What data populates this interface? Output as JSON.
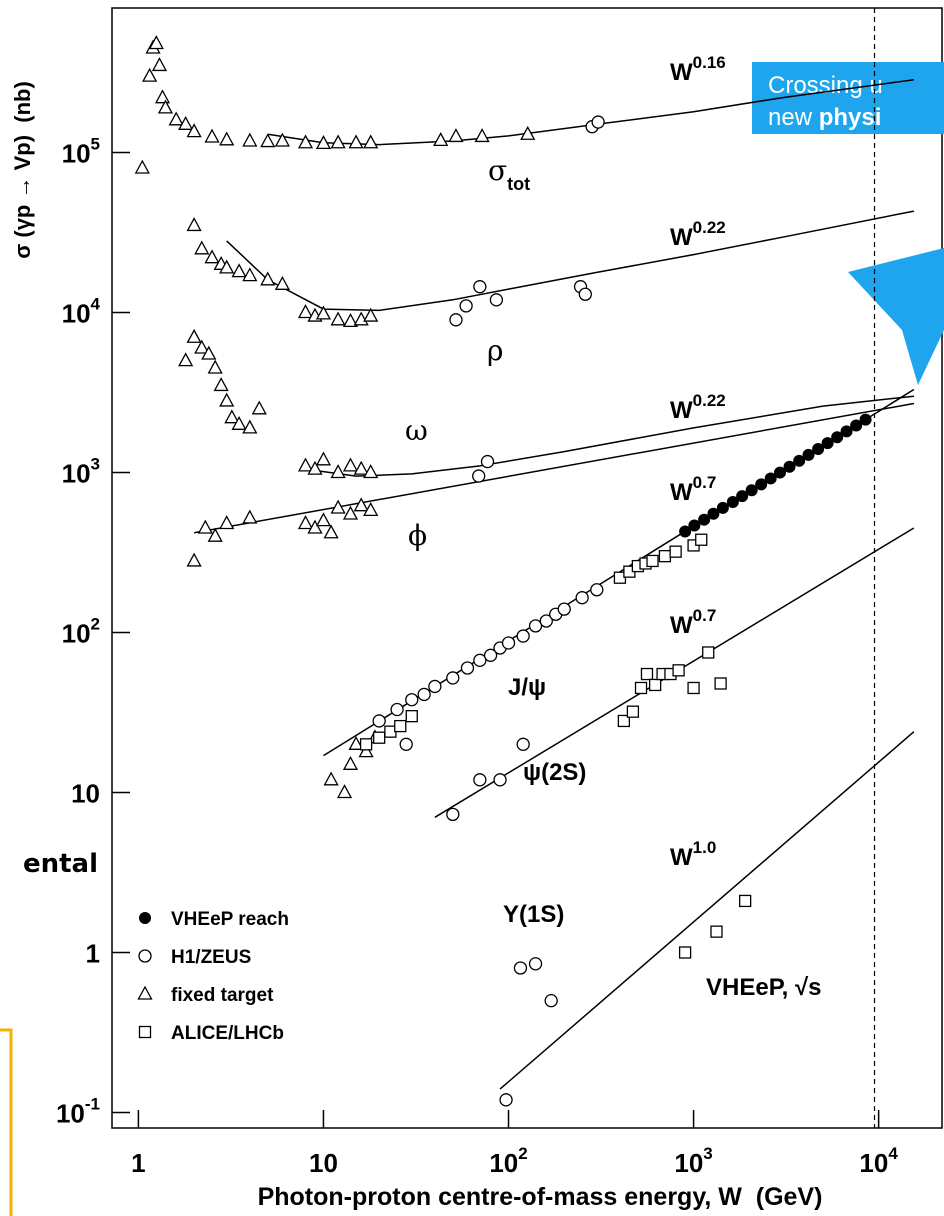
{
  "chart_data": {
    "type": "scatter",
    "log_x": true,
    "log_y": true,
    "x_label": "Photon-proton centre-of-mass energy, W  (GeV)",
    "y_label": "σ (γp → Vp)  (nb)",
    "xlim": [
      0.72,
      22000
    ],
    "ylim": [
      0.08,
      800000
    ],
    "xticks": [
      1,
      10,
      {
        "value": 100,
        "label": "10",
        "exponent": "2"
      },
      {
        "value": 1000,
        "label": "10",
        "exponent": "3"
      },
      {
        "value": 10000,
        "label": "10",
        "exponent": "4"
      }
    ],
    "yticks": [
      {
        "value": 0.1,
        "label": "10",
        "exponent": "-1"
      },
      1,
      10,
      {
        "value": 100,
        "label": "10",
        "exponent": "2"
      },
      {
        "value": 1000,
        "label": "10",
        "exponent": "3"
      },
      {
        "value": 10000,
        "label": "10",
        "exponent": "4"
      },
      {
        "value": 100000,
        "label": "10",
        "exponent": "5"
      }
    ],
    "legend": "lower left",
    "vline": 9500,
    "series": [
      {
        "name": "VHEeP reach",
        "marker": "filled-circle",
        "color": "#000000",
        "x": [
          900,
          1010,
          1140,
          1280,
          1440,
          1630,
          1830,
          2060,
          2320,
          2610,
          2930,
          3300,
          3720,
          4180,
          4710,
          5300,
          5970,
          6710,
          7560,
          8500
        ],
        "values": [
          428,
          466,
          507,
          552,
          601,
          654,
          712,
          775,
          843,
          918,
          999,
          1087,
          1183,
          1288,
          1402,
          1526,
          1661,
          1808,
          1967,
          2141
        ]
      },
      {
        "name": "H1/ZEUS",
        "marker": "circle",
        "color": "#000000",
        "x": [
          283,
          305,
          52,
          59,
          70,
          86,
          245,
          260,
          69,
          77,
          20,
          25,
          28,
          30,
          35,
          40,
          50,
          60,
          70,
          80,
          90,
          100,
          120,
          140,
          160,
          180,
          200,
          250,
          300,
          50,
          70,
          90,
          120,
          97,
          116,
          140,
          170
        ],
        "values": [
          145000,
          155000,
          9000,
          11000,
          14500,
          12000,
          14500,
          13000,
          950,
          1170,
          28,
          33,
          20,
          38,
          41,
          46,
          52,
          60,
          67,
          72,
          80,
          86,
          95,
          110,
          118,
          130,
          140,
          165,
          185,
          7.3,
          12,
          12,
          20,
          0.12,
          0.8,
          0.85,
          0.5
        ]
      },
      {
        "name": "fixed target",
        "marker": "triangle",
        "color": "#000000",
        "x": [
          1.05,
          1.15,
          1.2,
          1.25,
          1.3,
          1.35,
          1.4,
          1.6,
          1.8,
          2,
          2.5,
          3,
          4,
          5,
          6,
          8,
          10,
          12,
          15,
          18,
          43,
          52,
          72,
          127,
          2,
          2.2,
          2.5,
          2.8,
          3,
          3.5,
          4,
          5,
          6,
          8,
          9,
          10,
          12,
          14,
          16,
          18,
          1.8,
          2,
          2.2,
          2.4,
          2.6,
          2.8,
          3,
          3.2,
          3.5,
          4,
          4.5,
          8,
          9,
          10,
          12,
          14,
          16,
          18,
          2,
          2.3,
          2.6,
          3,
          4,
          8,
          9,
          10,
          11,
          12,
          14,
          16,
          18,
          11,
          13,
          14,
          15,
          17,
          19
        ],
        "values": [
          80000,
          300000,
          450000,
          480000,
          350000,
          220000,
          190000,
          160000,
          150000,
          135000,
          125000,
          120000,
          118000,
          117000,
          118000,
          115000,
          114000,
          115000,
          115000,
          115000,
          119000,
          126000,
          126000,
          130000,
          35000,
          25000,
          22000,
          20000,
          19000,
          18000,
          17000,
          16000,
          15000,
          10000,
          9500,
          9800,
          9000,
          8800,
          9000,
          9500,
          5000,
          7000,
          6000,
          5500,
          4500,
          3500,
          2800,
          2200,
          2000,
          1900,
          2500,
          1100,
          1050,
          1200,
          1000,
          1100,
          1050,
          1000,
          280,
          450,
          400,
          480,
          520,
          480,
          450,
          500,
          420,
          600,
          550,
          620,
          580,
          12,
          10,
          15,
          20,
          18,
          22
        ]
      },
      {
        "name": "ALICE/LHCb",
        "marker": "square",
        "color": "#000000",
        "x": [
          17,
          20,
          23,
          26,
          30,
          400,
          450,
          500,
          550,
          600,
          700,
          800,
          1000,
          1100,
          420,
          470,
          520,
          560,
          620,
          680,
          750,
          830,
          1000,
          1200,
          1400,
          900,
          1330,
          1900
        ],
        "values": [
          20,
          22,
          24,
          26,
          30,
          220,
          240,
          260,
          270,
          280,
          300,
          320,
          350,
          380,
          28,
          32,
          45,
          55,
          47,
          55,
          55,
          58,
          45,
          75,
          48,
          1.0,
          1.35,
          2.1
        ]
      }
    ],
    "fits": [
      {
        "x": [
          5,
          10,
          20,
          50,
          100,
          300,
          1000,
          3000,
          15500
        ],
        "values": [
          130000,
          115000,
          112000,
          118000,
          127000,
          150000,
          180000,
          220000,
          285000
        ]
      },
      {
        "x": [
          3,
          5,
          10,
          20,
          50,
          100,
          300,
          1000,
          3000,
          15500
        ],
        "values": [
          28000,
          16000,
          10500,
          10300,
          12000,
          14000,
          17800,
          23000,
          29500,
          43000
        ]
      },
      {
        "x": [
          8,
          15,
          30,
          70,
          200,
          1000,
          5000,
          15500
        ],
        "values": [
          1050,
          950,
          980,
          1100,
          1350,
          1900,
          2600,
          3000
        ]
      },
      {
        "x": [
          2,
          15500
        ],
        "values": [
          420,
          2700
        ]
      },
      {
        "x": [
          10,
          15500
        ],
        "values": [
          17,
          3300
        ]
      },
      {
        "x": [
          40,
          15500
        ],
        "values": [
          7,
          450
        ]
      },
      {
        "x": [
          90,
          15500
        ],
        "values": [
          0.14,
          24
        ]
      }
    ],
    "annotations": [
      {
        "text": "W",
        "sup": "0.16"
      },
      {
        "text": "W",
        "sup": "0.22"
      },
      {
        "text": "W",
        "sup": "0.22"
      },
      {
        "text": "W",
        "sup": "0.7"
      },
      {
        "text": "W",
        "sup": "0.7"
      },
      {
        "text": "W",
        "sup": "1.0"
      },
      {
        "text": "σ",
        "sub": "tot"
      },
      {
        "text": "ρ"
      },
      {
        "text": "ω"
      },
      {
        "text": "ϕ"
      },
      {
        "text": "J/ψ"
      },
      {
        "text": "ψ(2S)"
      },
      {
        "text": "Υ(1S)"
      },
      {
        "text": "VHEeP, √s"
      }
    ]
  },
  "overlay": {
    "callout_line1": "Crossing u",
    "callout_line2a": "new ",
    "callout_line2b": "physi",
    "side_text": "ental"
  }
}
